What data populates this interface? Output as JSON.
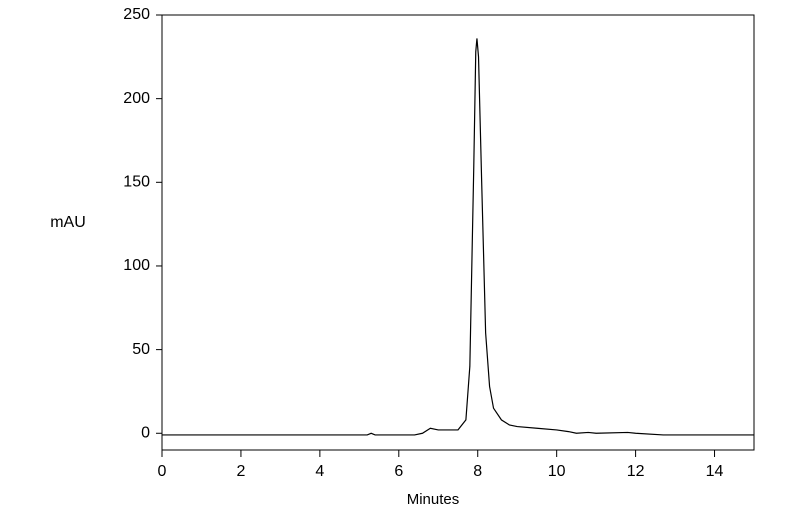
{
  "chart_data": {
    "type": "line",
    "ylabel": "mAU",
    "xlabel": "Minutes",
    "xlim": [
      0,
      15
    ],
    "ylim": [
      -10,
      250
    ],
    "xticks": [
      0,
      2,
      4,
      6,
      8,
      10,
      12,
      14
    ],
    "yticks": [
      0,
      50,
      100,
      150,
      200,
      250
    ],
    "series": [
      {
        "color": "#000000",
        "x": [
          0,
          5.2,
          5.3,
          5.4,
          6.4,
          6.6,
          6.8,
          7.0,
          7.2,
          7.5,
          7.7,
          7.8,
          7.9,
          7.95,
          7.98,
          8.02,
          8.1,
          8.2,
          8.3,
          8.4,
          8.6,
          8.8,
          9.0,
          9.5,
          10.0,
          10.3,
          10.5,
          10.8,
          11.0,
          11.8,
          12.0,
          12.7,
          15
        ],
        "values": [
          -1,
          -1,
          0,
          -1,
          -1,
          0,
          3,
          2,
          2,
          2,
          8,
          40,
          160,
          228,
          236,
          225,
          150,
          60,
          28,
          15,
          8,
          5,
          4,
          3,
          2,
          1,
          0,
          0.5,
          0,
          0.5,
          0,
          -1,
          -1
        ]
      }
    ]
  }
}
